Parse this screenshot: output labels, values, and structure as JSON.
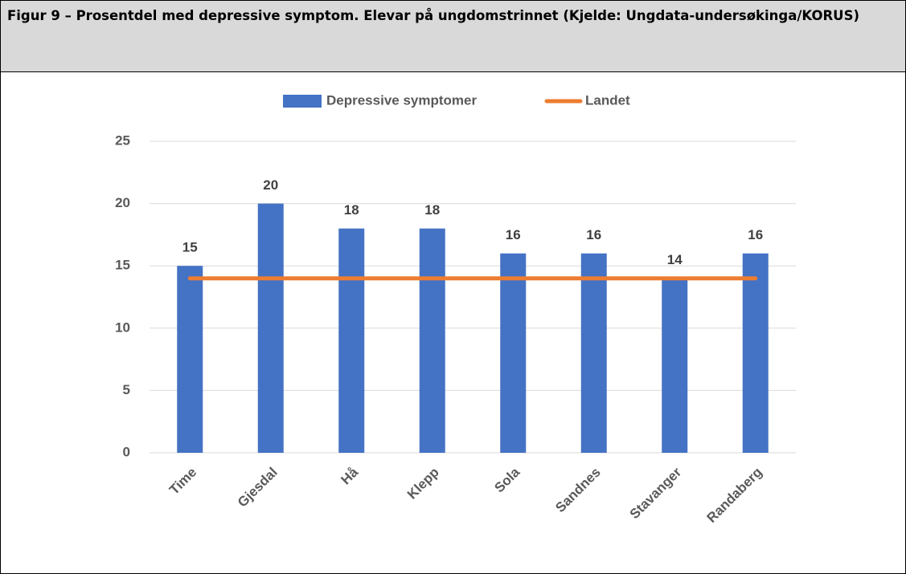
{
  "chart_data": {
    "type": "bar",
    "title": "Figur 9 – Prosentdel med depressive symptom. Elevar på ungdomstrinnet (Kjelde: Ungdata-undersøkinga/KORUS)",
    "categories": [
      "Time",
      "Gjesdal",
      "Hå",
      "Klepp",
      "Sola",
      "Sandnes",
      "Stavanger",
      "Randaberg"
    ],
    "series": [
      {
        "name": "Depressive symptomer",
        "type": "bar",
        "color": "#4472c4",
        "values": [
          15,
          20,
          18,
          18,
          16,
          16,
          14,
          16
        ]
      },
      {
        "name": "Landet",
        "type": "line",
        "color": "#ed7d31",
        "values": [
          14,
          14,
          14,
          14,
          14,
          14,
          14,
          14
        ]
      }
    ],
    "ylim": [
      0,
      25
    ],
    "yticks": [
      0,
      5,
      10,
      15,
      20,
      25
    ],
    "grid": true,
    "legend": "top"
  }
}
